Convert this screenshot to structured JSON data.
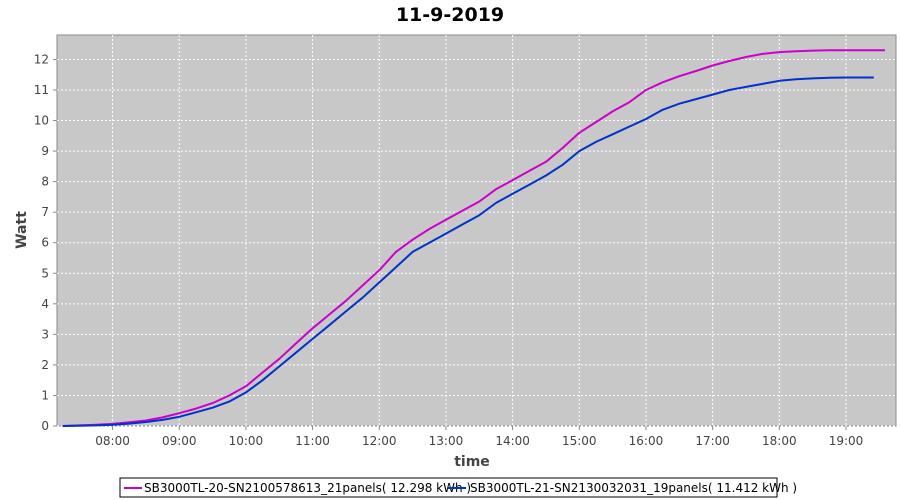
{
  "chart_data": {
    "type": "line",
    "title": "11-9-2019",
    "xlabel": "time",
    "ylabel": "Watt",
    "xlim": [
      "07:10",
      "19:45"
    ],
    "ylim": [
      0,
      12.8
    ],
    "x_ticks": [
      "08:00",
      "09:00",
      "10:00",
      "11:00",
      "12:00",
      "13:00",
      "14:00",
      "15:00",
      "16:00",
      "17:00",
      "18:00",
      "19:00"
    ],
    "y_ticks": [
      0,
      1,
      2,
      3,
      4,
      5,
      6,
      7,
      8,
      9,
      10,
      11,
      12
    ],
    "grid": true,
    "legend_position": "bottom",
    "background_color": "#c8c8c8",
    "series": [
      {
        "name": "SB3000TL-20-SN2100578613_21panels( 12.298 kWh )",
        "color": "#cc00cc",
        "x": [
          "07:15",
          "07:30",
          "07:45",
          "08:00",
          "08:15",
          "08:30",
          "08:45",
          "09:00",
          "09:15",
          "09:30",
          "09:45",
          "10:00",
          "10:15",
          "10:30",
          "10:45",
          "11:00",
          "11:15",
          "11:30",
          "11:45",
          "12:00",
          "12:15",
          "12:30",
          "12:45",
          "13:00",
          "13:15",
          "13:30",
          "13:45",
          "14:00",
          "14:15",
          "14:30",
          "14:45",
          "15:00",
          "15:15",
          "15:30",
          "15:45",
          "16:00",
          "16:15",
          "16:30",
          "16:45",
          "17:00",
          "17:15",
          "17:30",
          "17:45",
          "18:00",
          "18:15",
          "18:30",
          "18:45",
          "19:00",
          "19:15",
          "19:35"
        ],
        "values": [
          0.0,
          0.02,
          0.04,
          0.07,
          0.12,
          0.18,
          0.28,
          0.42,
          0.57,
          0.75,
          1.0,
          1.3,
          1.75,
          2.2,
          2.7,
          3.2,
          3.65,
          4.1,
          4.6,
          5.1,
          5.7,
          6.1,
          6.45,
          6.75,
          7.05,
          7.35,
          7.75,
          8.05,
          8.35,
          8.65,
          9.1,
          9.6,
          9.95,
          10.3,
          10.6,
          11.0,
          11.25,
          11.45,
          11.62,
          11.8,
          11.95,
          12.08,
          12.18,
          12.24,
          12.27,
          12.29,
          12.3,
          12.3,
          12.3,
          12.3
        ]
      },
      {
        "name": "SB3000TL-21-SN2130032031_19panels( 11.412 kWh )",
        "color": "#0033cc",
        "x": [
          "07:15",
          "07:30",
          "07:45",
          "08:00",
          "08:15",
          "08:30",
          "08:45",
          "09:00",
          "09:15",
          "09:30",
          "09:45",
          "10:00",
          "10:15",
          "10:30",
          "10:45",
          "11:00",
          "11:15",
          "11:30",
          "11:45",
          "12:00",
          "12:15",
          "12:30",
          "12:45",
          "13:00",
          "13:15",
          "13:30",
          "13:45",
          "14:00",
          "14:15",
          "14:30",
          "14:45",
          "15:00",
          "15:15",
          "15:30",
          "15:45",
          "16:00",
          "16:15",
          "16:30",
          "16:45",
          "17:00",
          "17:15",
          "17:30",
          "17:45",
          "18:00",
          "18:15",
          "18:30",
          "18:45",
          "19:00",
          "19:15",
          "19:25"
        ],
        "values": [
          0.0,
          0.01,
          0.02,
          0.04,
          0.08,
          0.13,
          0.2,
          0.3,
          0.45,
          0.6,
          0.8,
          1.1,
          1.5,
          1.95,
          2.4,
          2.85,
          3.3,
          3.75,
          4.2,
          4.7,
          5.2,
          5.7,
          6.0,
          6.3,
          6.6,
          6.9,
          7.3,
          7.6,
          7.9,
          8.2,
          8.55,
          9.0,
          9.3,
          9.55,
          9.8,
          10.05,
          10.35,
          10.55,
          10.7,
          10.85,
          11.0,
          11.1,
          11.2,
          11.3,
          11.35,
          11.38,
          11.4,
          11.41,
          11.41,
          11.41
        ]
      }
    ]
  }
}
